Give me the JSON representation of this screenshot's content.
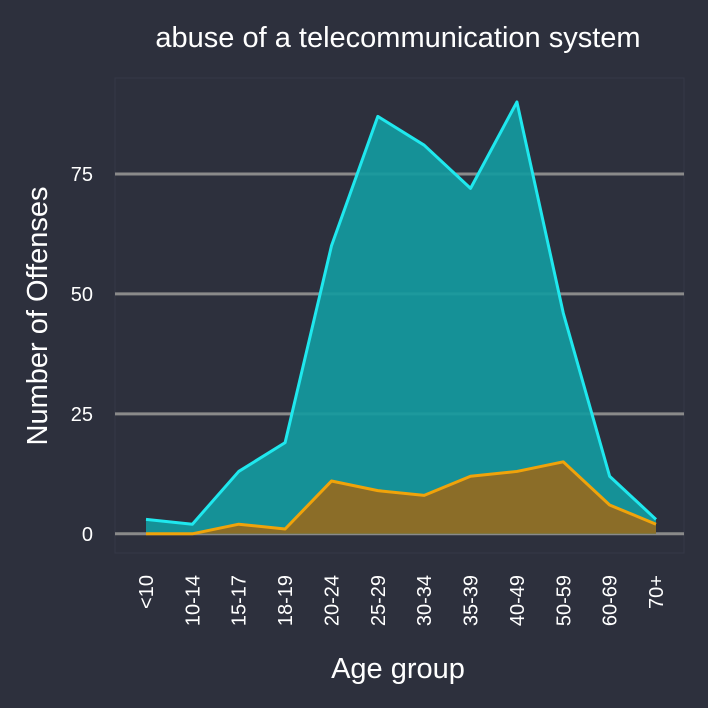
{
  "chart_data": {
    "type": "area",
    "title": "abuse of a telecommunication system",
    "xlabel": "Age group",
    "ylabel": "Number of Offenses",
    "categories": [
      "<10",
      "10-14",
      "15-17",
      "18-19",
      "20-24",
      "25-29",
      "30-34",
      "35-39",
      "40-49",
      "50-59",
      "60-69",
      "70+"
    ],
    "series": [
      {
        "color": "#1fe8ee",
        "fill": "#149a9e",
        "values": [
          3,
          2,
          13,
          19,
          60,
          87,
          81,
          72,
          90,
          46,
          12,
          3
        ]
      },
      {
        "color": "#f0a30a",
        "fill": "#966a1e",
        "values": [
          0,
          0,
          2,
          1,
          11,
          9,
          8,
          12,
          13,
          15,
          6,
          2
        ]
      }
    ],
    "yticks": [
      0,
      25,
      50,
      75
    ],
    "ylim": [
      -4,
      95
    ],
    "grid": true,
    "legend": "none",
    "colors": {
      "background": "#2d303d",
      "gridline": "#8a8a8a",
      "text": "#ffffff"
    }
  }
}
